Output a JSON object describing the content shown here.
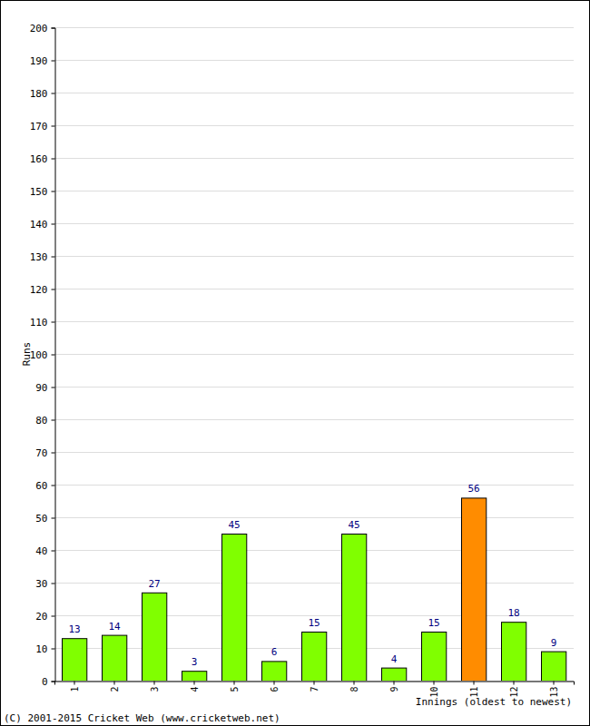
{
  "chart_data": {
    "type": "bar",
    "categories": [
      "1",
      "2",
      "3",
      "4",
      "5",
      "6",
      "7",
      "8",
      "9",
      "10",
      "11",
      "12",
      "13"
    ],
    "values": [
      13,
      14,
      27,
      3,
      45,
      6,
      15,
      45,
      4,
      15,
      56,
      18,
      9
    ],
    "colors": [
      "#80ff00",
      "#80ff00",
      "#80ff00",
      "#80ff00",
      "#80ff00",
      "#80ff00",
      "#80ff00",
      "#80ff00",
      "#80ff00",
      "#80ff00",
      "#ff8c00",
      "#80ff00",
      "#80ff00"
    ],
    "ylim": [
      0,
      200
    ],
    "yticks": [
      0,
      10,
      20,
      30,
      40,
      50,
      60,
      70,
      80,
      90,
      100,
      110,
      120,
      130,
      140,
      150,
      160,
      170,
      180,
      190,
      200
    ],
    "grid": true,
    "data_labels": true,
    "y_label": "Runs",
    "x_label": "Innings (oldest to newest)",
    "annotations": [
      "(C) 2001-2015 Cricket Web (www.cricketweb.net)"
    ]
  }
}
